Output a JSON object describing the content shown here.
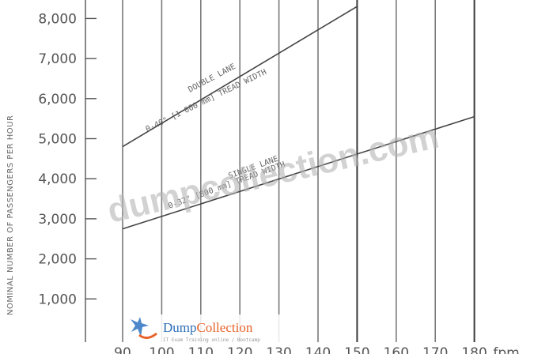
{
  "chart_data": {
    "type": "line",
    "title": "",
    "ylabel": "NOMINAL NUMBER OF PASSENGERS PER HOUR",
    "xlabel": "fpm",
    "y_ticks": [
      "8,000",
      "7,000",
      "6,000",
      "5,000",
      "4,000",
      "3,000",
      "2,000",
      "1,000"
    ],
    "x_ticks": [
      "90",
      "100",
      "110",
      "120",
      "130",
      "140",
      "150",
      "160",
      "170",
      "180"
    ],
    "x_unit_label": "fpm",
    "grid": "vertical",
    "series": [
      {
        "name": "DOUBLE LANE 0-40\" [1 000 mm] TREAD WIDTH",
        "label_line1": "DOUBLE LANE",
        "label_line2": "0-40\" [1 000 mm] TREAD WIDTH",
        "color": "#444444",
        "x": [
          90,
          150
        ],
        "y": [
          4800,
          8300
        ]
      },
      {
        "name": "SINGLE LANE 0-32\" [800 mm] TREAD WIDTH",
        "label_line1": "SINGLE LANE",
        "label_line2": "0-32\" [800 mm] TREAD WIDTH",
        "color": "#444444",
        "x": [
          90,
          180
        ],
        "y": [
          2750,
          5550
        ]
      }
    ]
  },
  "watermark": {
    "text": "dumpcollection.com",
    "logo_part1": "Dump",
    "logo_part2": "Collection",
    "logo_sub": "IT Exam Training online / Bootcamp",
    "logo_color1": "#2e6fb7",
    "logo_color2": "#e8632a"
  }
}
